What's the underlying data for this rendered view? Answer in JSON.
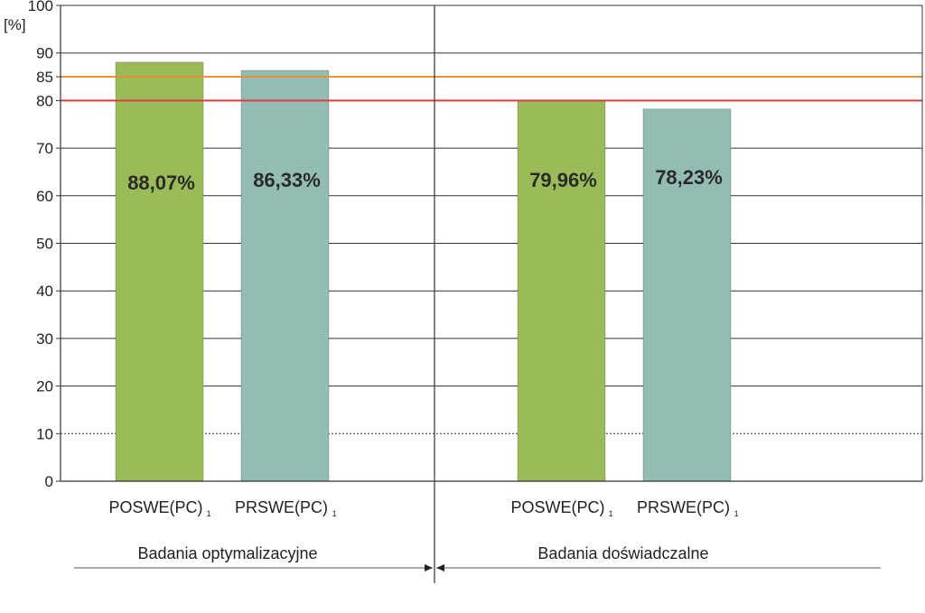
{
  "chart_data": {
    "type": "bar",
    "unit_label": "[%]",
    "ylim": [
      0,
      100
    ],
    "y_ticks": [
      0,
      10,
      20,
      30,
      40,
      50,
      60,
      70,
      80,
      85,
      90,
      100
    ],
    "grid": true,
    "bars": [
      {
        "group": 0,
        "category": "POSWE(PC)",
        "subscript": "1",
        "value": 88.07,
        "label": "88,07%",
        "color": "#9bbb59"
      },
      {
        "group": 0,
        "category": "PRSWE(PC)",
        "subscript": "1",
        "value": 86.33,
        "label": "86,33%",
        "color": "#93bcb4"
      },
      {
        "group": 1,
        "category": "POSWE(PC)",
        "subscript": "1",
        "value": 79.96,
        "label": "79,96%",
        "color": "#9bbb59"
      },
      {
        "group": 1,
        "category": "PRSWE(PC)",
        "subscript": "1",
        "value": 78.23,
        "label": "78,23%",
        "color": "#93bcb4"
      }
    ],
    "groups": [
      {
        "label": "Badania optymalizacyjne"
      },
      {
        "label": "Badania doświadczalne"
      }
    ],
    "reference_lines": [
      {
        "value": 85,
        "color": "#e69138"
      },
      {
        "value": 80,
        "color": "#e0393e"
      }
    ]
  }
}
